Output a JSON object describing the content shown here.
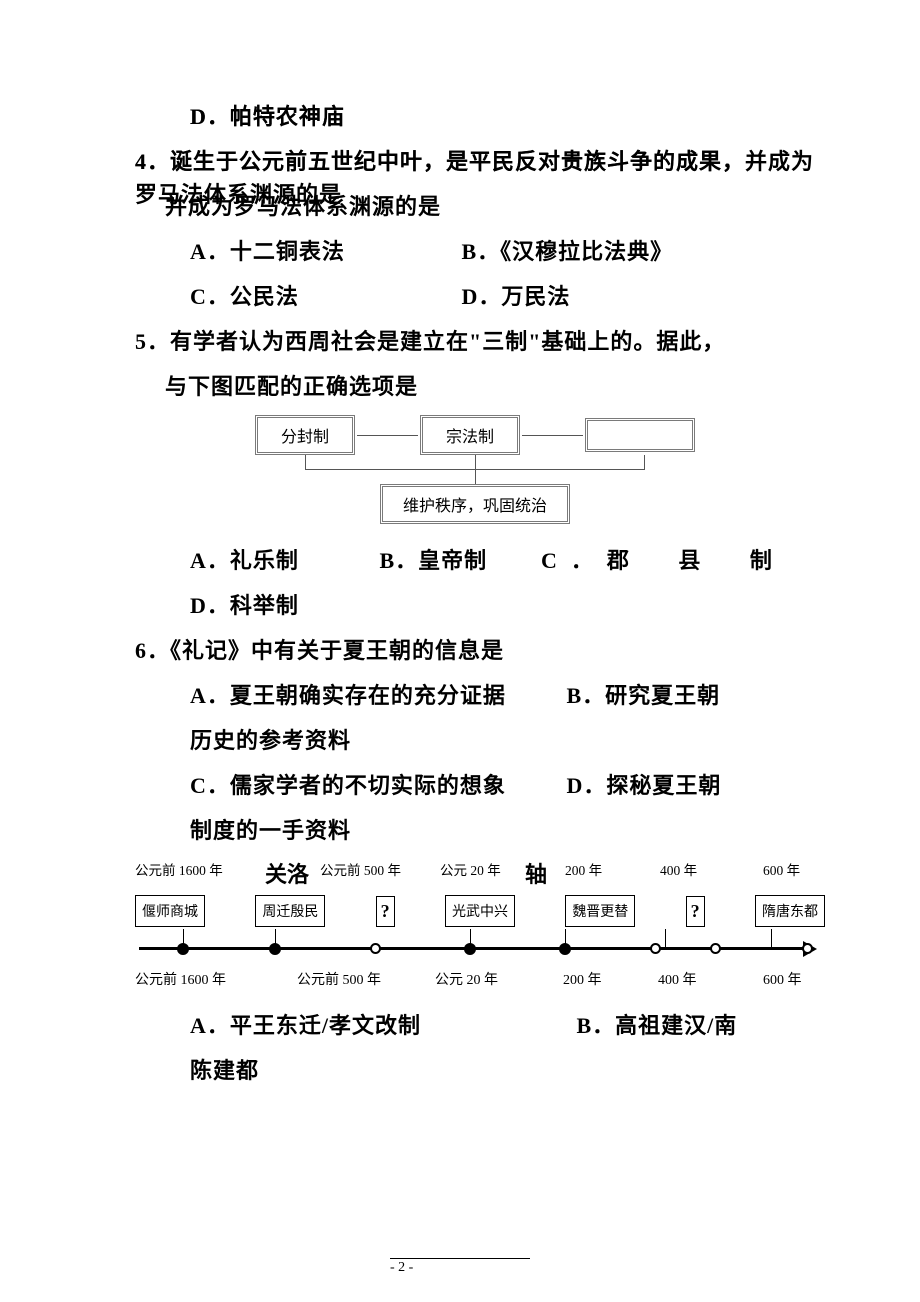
{
  "q3": {
    "optD": "D．帕特农神庙"
  },
  "q4": {
    "stem": "4．诞生于公元前五世纪中叶，是平民反对贵族斗争的成果，并成为罗马法体系渊源的是",
    "optA": "A．十二铜表法",
    "optB": "B．《汉穆拉比法典》",
    "optC": "C．公民法",
    "optD": "D．万民法"
  },
  "q5": {
    "stem": "5．有学者认为西周社会是建立在\"三制\"基础上的。据此，与下图匹配的正确选项是",
    "diagram": {
      "box1": "分封制",
      "box2": "宗法制",
      "bottom": "维护秩序，巩固统治",
      "box_border_color": "#7a7a7a",
      "line_color": "#555555"
    },
    "optA": "A．礼乐制",
    "optB": "B．皇帝制",
    "optC_prefix": "C",
    "optC_dot": "．",
    "optC_text": "郡  县  制",
    "optD": "D．科举制"
  },
  "q6": {
    "stem": "6．《礼记》中有关于夏王朝的信息是",
    "optA": "A．夏王朝确实存在的充分证据",
    "optB": "B．研究夏王朝历史的参考资料",
    "optC": "C．儒家学者的不切实际的想象",
    "optD": "D．探秘夏王朝制度的一手资料"
  },
  "timeline": {
    "top_years": {
      "y1": "公元前 1600 年",
      "y2": "公元前 500 年",
      "y3": "公元 20 年",
      "y4": "200 年",
      "y5": "400 年",
      "y6": "600 年"
    },
    "title1": "关洛",
    "title2": "轴",
    "boxes": [
      "偃师商城",
      "周迁殷民",
      "?",
      "光武中兴",
      "魏晋更替",
      "?",
      "隋唐东都"
    ],
    "bottom_years": {
      "y1": "公元前 1600 年",
      "y2": "公元前 500 年",
      "y3": "公元 20 年",
      "y4": "200 年",
      "y5": "400 年",
      "y6": "600 年"
    },
    "axis": {
      "ticks_up_x": [
        48,
        140,
        335,
        430,
        530,
        636
      ],
      "hollow_x": [
        240,
        520,
        580,
        672
      ],
      "solid_x": [
        48,
        140,
        335,
        430
      ]
    }
  },
  "q7": {
    "optA": "A．平王东迁/孝文改制",
    "optB": "B．高祖建汉/南陈建都"
  },
  "page_number": "- 2 -",
  "colors": {
    "text": "#000000",
    "bg": "#ffffff"
  }
}
